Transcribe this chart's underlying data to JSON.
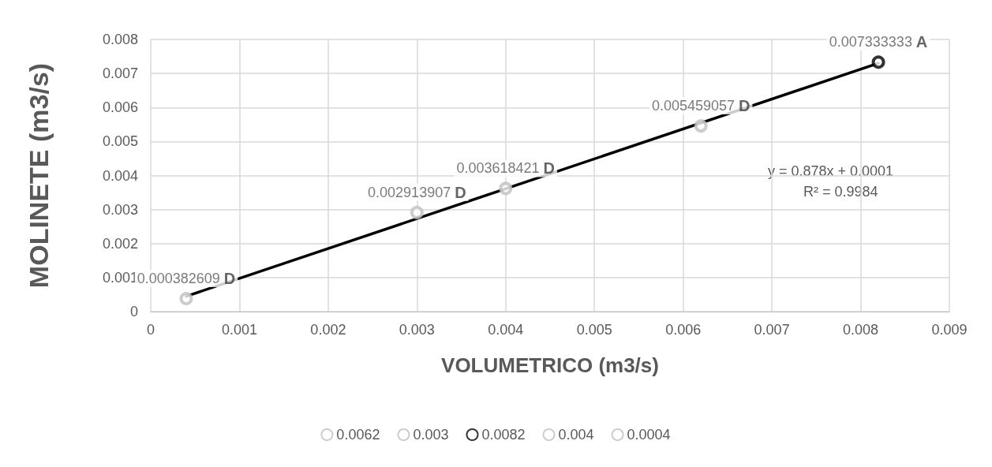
{
  "chart_data": {
    "type": "scatter",
    "xlabel": "VOLUMETRICO (m3/s)",
    "ylabel": "MOLINETE (m3/s)",
    "xlim": [
      0,
      0.009
    ],
    "xticks": [
      0,
      0.001,
      0.002,
      0.003,
      0.004,
      0.005,
      0.006,
      0.007,
      0.008,
      0.009
    ],
    "ylim": [
      0,
      0.008
    ],
    "yticks": [
      0,
      0.001,
      0.002,
      0.003,
      0.004,
      0.005,
      0.006,
      0.007,
      0.008
    ],
    "grid": true,
    "legend": "bottom",
    "marker": "circle",
    "series": [
      {
        "name": "0.0062",
        "color": "#bfbfbf",
        "x": [
          0.0062
        ],
        "values": [
          0.005459057
        ],
        "value_labels": [
          "0.005459057 D"
        ]
      },
      {
        "name": "0.003",
        "color": "#bfbfbf",
        "x": [
          0.003
        ],
        "values": [
          0.002913907
        ],
        "value_labels": [
          "0.002913907 D"
        ]
      },
      {
        "name": "0.0082",
        "color": "#000000",
        "x": [
          0.0082
        ],
        "values": [
          0.007333333
        ],
        "value_labels": [
          "0.007333333 A"
        ]
      },
      {
        "name": "0.004",
        "color": "#bfbfbf",
        "x": [
          0.004
        ],
        "values": [
          0.003618421
        ],
        "value_labels": [
          "0.003618421 D"
        ]
      },
      {
        "name": "0.0004",
        "color": "#bfbfbf",
        "x": [
          0.0004
        ],
        "values": [
          0.000382609
        ],
        "value_labels": [
          "0.000382609 D"
        ]
      },
      {
        "type": "line",
        "color": "#000000",
        "x": [
          0.0004,
          0.0082
        ],
        "values": [
          0.00045,
          0.0073
        ],
        "marker": "none",
        "line_style": "solid"
      }
    ],
    "annotations": [
      "y = 0.878x + 0.0001",
      "R² = 0.9984"
    ]
  }
}
